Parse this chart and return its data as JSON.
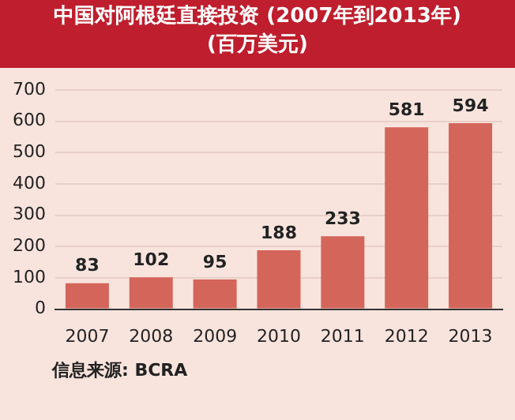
{
  "chart_data": {
    "type": "bar",
    "title": "中国对阿根廷直接投资 (2007年到2013年)",
    "subtitle": "(百万美元)",
    "categories": [
      "2007",
      "2008",
      "2009",
      "2010",
      "2011",
      "2012",
      "2013"
    ],
    "values": [
      83,
      102,
      95,
      188,
      233,
      581,
      594
    ],
    "color": "#d4655a",
    "ylim": [
      0,
      700
    ],
    "yticks": [
      0,
      100,
      200,
      300,
      400,
      500,
      600,
      700
    ],
    "grid": "y",
    "data_labels": true,
    "legend": false,
    "annotations": [
      "信息来源: BCRA"
    ]
  }
}
